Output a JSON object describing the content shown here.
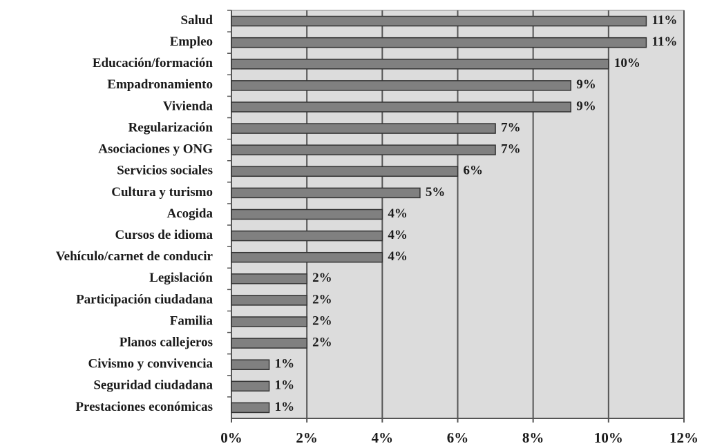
{
  "chart_data": {
    "type": "hbar",
    "categories": [
      "Salud",
      "Empleo",
      "Educación/formación",
      "Empadronamiento",
      "Vivienda",
      "Regularización",
      "Asociaciones y ONG",
      "Servicios sociales",
      "Cultura y turismo",
      "Acogida",
      "Cursos de idioma",
      "Vehículo/carnet de conducir",
      "Legislación",
      "Participación ciudadana",
      "Familia",
      "Planos callejeros",
      "Civismo y convivencia",
      "Seguridad ciudadana",
      "Prestaciones económicas"
    ],
    "values": [
      11,
      11,
      10,
      9,
      9,
      7,
      7,
      6,
      5,
      4,
      4,
      4,
      2,
      2,
      2,
      2,
      1,
      1,
      1
    ],
    "value_labels": [
      "11%",
      "11%",
      "10%",
      "9%",
      "9%",
      "7%",
      "7%",
      "6%",
      "5%",
      "4%",
      "4%",
      "4%",
      "2%",
      "2%",
      "2%",
      "2%",
      "1%",
      "1%",
      "1%"
    ],
    "color": "#808080",
    "xlim": [
      0,
      12
    ],
    "xticks": [
      {
        "value": 0,
        "label": "0%"
      },
      {
        "value": 2,
        "label": "2%"
      },
      {
        "value": 4,
        "label": "4%"
      },
      {
        "value": 6,
        "label": "6%"
      },
      {
        "value": 8,
        "label": "8%"
      },
      {
        "value": 10,
        "label": "10%"
      },
      {
        "value": 12,
        "label": "12%"
      }
    ],
    "grid": true
  }
}
